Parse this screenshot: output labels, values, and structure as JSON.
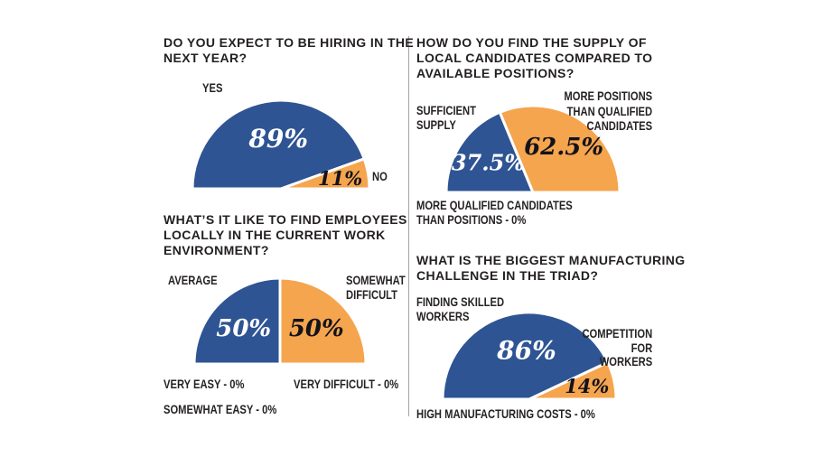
{
  "page": {
    "background": "#FFFFFF",
    "divider_color": "#A3A3A3"
  },
  "colors": {
    "blue": "#2E5493",
    "orange": "#F5A54E",
    "heading_text": "#231F20",
    "label_text": "#262223",
    "value_light": "#FFFFFF",
    "value_dark": "#13131B"
  },
  "chart_data": [
    {
      "id": "hiring-next-year",
      "type": "pie",
      "shape": "semicircle",
      "title": "DO YOU EXPECT TO BE HIRING IN THE NEXT YEAR?",
      "title_lines": [
        "DO YOU EXPECT TO BE HIRING IN THE",
        "NEXT YEAR?"
      ],
      "slices": [
        {
          "label": "YES",
          "label_lines": [
            "YES"
          ],
          "value": 89,
          "value_text": "89%",
          "color": "#2E5493",
          "value_color": "#FFFFFF"
        },
        {
          "label": "NO",
          "label_lines": [
            "NO"
          ],
          "value": 11,
          "value_text": "11%",
          "color": "#F5A54E",
          "value_color": "#13131B"
        }
      ],
      "zero_annotations": []
    },
    {
      "id": "supply-of-local-candidates",
      "type": "pie",
      "shape": "semicircle",
      "title": "HOW DO YOU FIND THE SUPPLY OF LOCAL CANDIDATES COMPARED TO AVAILABLE POSITIONS?",
      "title_lines": [
        "HOW DO YOU FIND THE SUPPLY OF",
        "LOCAL CANDIDATES COMPARED TO",
        "AVAILABLE POSITIONS?"
      ],
      "slices": [
        {
          "label": "SUFFICIENT SUPPLY",
          "label_lines": [
            "SUFFICIENT",
            "SUPPLY"
          ],
          "value": 37.5,
          "value_text": "37.5%",
          "color": "#2E5493",
          "value_color": "#FFFFFF"
        },
        {
          "label": "MORE POSITIONS THAN QUALIFIED CANDIDATES",
          "label_lines": [
            "MORE POSITIONS",
            "THAN QUALIFIED",
            "CANDIDATES"
          ],
          "value": 62.5,
          "value_text": "62.5%",
          "color": "#F5A54E",
          "value_color": "#13131B"
        }
      ],
      "zero_annotations": [
        {
          "label": "MORE QUALIFIED CANDIDATES THAN POSITIONS - 0%",
          "lines": [
            "MORE QUALIFIED CANDIDATES",
            "THAN POSITIONS - 0%"
          ]
        }
      ]
    },
    {
      "id": "finding-employees-locally",
      "type": "pie",
      "shape": "semicircle",
      "title": "WHAT’S IT LIKE TO FIND EMPLOYEES LOCALLY IN THE CURRENT WORK ENVIRONMENT?",
      "title_lines": [
        "WHAT’S IT LIKE TO FIND EMPLOYEES",
        "LOCALLY IN THE CURRENT WORK",
        "ENVIRONMENT?"
      ],
      "slices": [
        {
          "label": "AVERAGE",
          "label_lines": [
            "AVERAGE"
          ],
          "value": 50,
          "value_text": "50%",
          "color": "#2E5493",
          "value_color": "#FFFFFF"
        },
        {
          "label": "SOMEWHAT DIFFICULT",
          "label_lines": [
            "SOMEWHAT",
            "DIFFICULT"
          ],
          "value": 50,
          "value_text": "50%",
          "color": "#F5A54E",
          "value_color": "#13131B"
        }
      ],
      "zero_annotations": [
        {
          "label": "VERY EASY - 0%",
          "lines": [
            "VERY EASY - 0%"
          ]
        },
        {
          "label": "VERY DIFFICULT - 0%",
          "lines": [
            "VERY DIFFICULT - 0%"
          ]
        },
        {
          "label": "SOMEWHAT EASY - 0%",
          "lines": [
            "SOMEWHAT EASY - 0%"
          ]
        }
      ]
    },
    {
      "id": "biggest-manufacturing-challenge",
      "type": "pie",
      "shape": "semicircle",
      "title": "WHAT IS THE BIGGEST MANUFACTURING CHALLENGE IN THE TRIAD?",
      "title_lines": [
        "WHAT IS THE BIGGEST MANUFACTURING",
        "CHALLENGE IN THE TRIAD?"
      ],
      "slices": [
        {
          "label": "FINDING SKILLED WORKERS",
          "label_lines": [
            "FINDING SKILLED",
            "WORKERS"
          ],
          "value": 86,
          "value_text": "86%",
          "color": "#2E5493",
          "value_color": "#FFFFFF"
        },
        {
          "label": "COMPETITION FOR WORKERS",
          "label_lines": [
            "COMPETITION",
            "FOR",
            "WORKERS"
          ],
          "value": 14,
          "value_text": "14%",
          "color": "#F5A54E",
          "value_color": "#13131B"
        }
      ],
      "zero_annotations": [
        {
          "label": "HIGH MANUFACTURING COSTS - 0%",
          "lines": [
            "HIGH MANUFACTURING COSTS - 0%"
          ]
        }
      ]
    }
  ]
}
